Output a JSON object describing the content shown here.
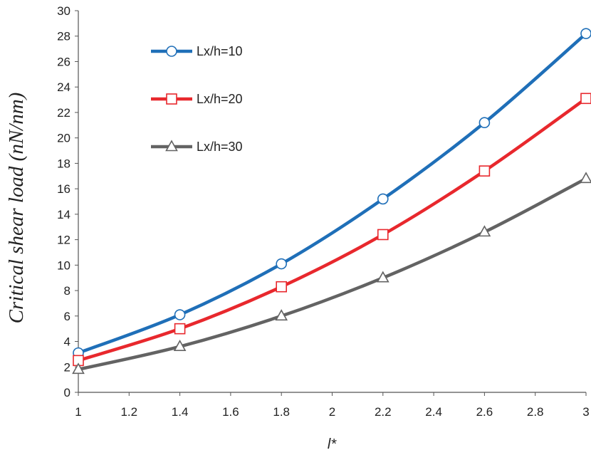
{
  "chart_data": {
    "type": "line",
    "title": "",
    "xlabel": "l*",
    "ylabel": "Critical shear load (nN/nm)",
    "xlim": [
      1,
      3
    ],
    "ylim": [
      0,
      30
    ],
    "xticks": [
      "1",
      "1.2",
      "1.4",
      "1.6",
      "1.8",
      "2",
      "2.2",
      "2.4",
      "2.6",
      "2.8",
      "3"
    ],
    "yticks": [
      "0",
      "2",
      "4",
      "6",
      "8",
      "10",
      "12",
      "14",
      "16",
      "18",
      "20",
      "22",
      "24",
      "26",
      "28",
      "30"
    ],
    "grid": false,
    "legend_position": "top-left",
    "x": [
      1,
      1.4,
      1.8,
      2.2,
      2.6,
      3
    ],
    "series": [
      {
        "name": "Lx/h=10",
        "color": "#1f6fb8",
        "marker": "circle",
        "values": [
          3.1,
          6.1,
          10.1,
          15.2,
          21.2,
          28.2
        ]
      },
      {
        "name": "Lx/h=20",
        "color": "#e8282d",
        "marker": "square",
        "values": [
          2.5,
          5.0,
          8.3,
          12.4,
          17.4,
          23.1
        ]
      },
      {
        "name": "Lx/h=30",
        "color": "#636363",
        "marker": "triangle",
        "values": [
          1.8,
          3.6,
          6.0,
          9.0,
          12.6,
          16.8
        ]
      }
    ]
  }
}
